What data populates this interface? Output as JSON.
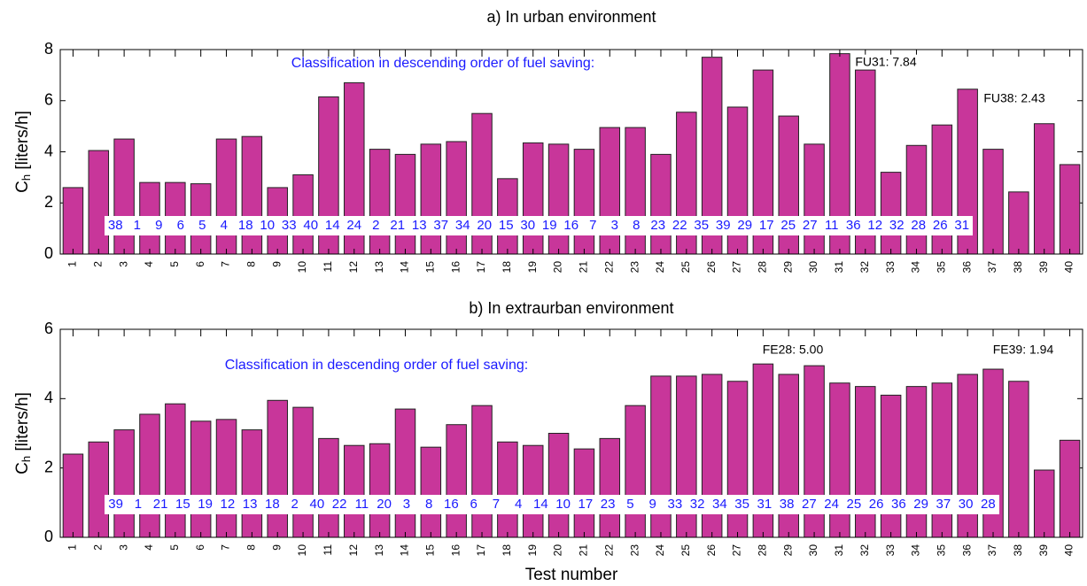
{
  "chart_data": [
    {
      "type": "bar",
      "title": "a) In urban environment",
      "categories": [
        "1",
        "2",
        "3",
        "4",
        "5",
        "6",
        "7",
        "8",
        "9",
        "10",
        "11",
        "12",
        "13",
        "14",
        "15",
        "16",
        "17",
        "18",
        "19",
        "20",
        "21",
        "22",
        "23",
        "24",
        "25",
        "26",
        "27",
        "28",
        "29",
        "30",
        "31",
        "32",
        "33",
        "34",
        "35",
        "36",
        "37",
        "38",
        "39",
        "40"
      ],
      "values": [
        2.6,
        4.05,
        4.5,
        2.8,
        2.8,
        2.75,
        4.5,
        4.6,
        2.6,
        3.1,
        6.15,
        6.7,
        4.1,
        3.9,
        4.3,
        4.4,
        5.5,
        2.95,
        4.35,
        4.3,
        4.1,
        4.95,
        4.95,
        3.9,
        5.55,
        7.7,
        5.75,
        7.2,
        5.4,
        4.3,
        7.84,
        7.2,
        3.2,
        4.25,
        5.05,
        6.45,
        4.1,
        2.43,
        5.1,
        3.5
      ],
      "color": "#c8369a",
      "ylim": [
        0,
        8
      ],
      "yticks": [
        0,
        2,
        4,
        6,
        8
      ],
      "ylabel": {
        "main": "C",
        "sub": "h",
        "rest": " [liters/h]"
      },
      "classification_title": "Classification in descending order of fuel saving:",
      "ranking": [
        "38",
        "1",
        "9",
        "6",
        "5",
        "4",
        "18",
        "10",
        "33",
        "40",
        "14",
        "24",
        "2",
        "21",
        "13",
        "37",
        "34",
        "20",
        "15",
        "30",
        "19",
        "16",
        "7",
        "3",
        "8",
        "23",
        "22",
        "35",
        "39",
        "29",
        "17",
        "25",
        "27",
        "11",
        "36",
        "12",
        "32",
        "28",
        "26",
        "31"
      ],
      "annotations": [
        "FU31: 7.84",
        "FU38: 2.43"
      ]
    },
    {
      "type": "bar",
      "title": "b) In extraurban environment",
      "categories": [
        "1",
        "2",
        "3",
        "4",
        "5",
        "6",
        "7",
        "8",
        "9",
        "10",
        "11",
        "12",
        "13",
        "14",
        "15",
        "16",
        "17",
        "18",
        "19",
        "20",
        "21",
        "22",
        "23",
        "24",
        "25",
        "26",
        "27",
        "28",
        "29",
        "30",
        "31",
        "32",
        "33",
        "34",
        "35",
        "36",
        "37",
        "38",
        "39",
        "40"
      ],
      "values": [
        2.4,
        2.75,
        3.1,
        3.55,
        3.85,
        3.35,
        3.4,
        3.1,
        3.95,
        3.75,
        2.85,
        2.65,
        2.7,
        3.7,
        2.6,
        3.25,
        3.8,
        2.75,
        2.65,
        3.0,
        2.55,
        2.85,
        3.8,
        4.65,
        4.65,
        4.7,
        4.5,
        5.0,
        4.7,
        4.95,
        4.45,
        4.35,
        4.1,
        4.35,
        4.45,
        4.7,
        4.85,
        4.5,
        1.94,
        2.8
      ],
      "color": "#c8369a",
      "ylim": [
        0,
        6
      ],
      "yticks": [
        0,
        2,
        4,
        6
      ],
      "ylabel": {
        "main": "C",
        "sub": "h",
        "rest": " [liters/h]"
      },
      "xlabel": "Test number",
      "classification_title": "Classification in descending order of fuel saving:",
      "ranking": [
        "39",
        "1",
        "21",
        "15",
        "19",
        "12",
        "13",
        "18",
        "2",
        "40",
        "22",
        "11",
        "20",
        "3",
        "8",
        "16",
        "6",
        "7",
        "4",
        "14",
        "10",
        "17",
        "23",
        "5",
        "9",
        "33",
        "32",
        "34",
        "35",
        "31",
        "38",
        "27",
        "24",
        "25",
        "26",
        "36",
        "29",
        "37",
        "30",
        "28"
      ],
      "annotations": [
        "FE28: 5.00",
        "FE39: 1.94"
      ]
    }
  ]
}
